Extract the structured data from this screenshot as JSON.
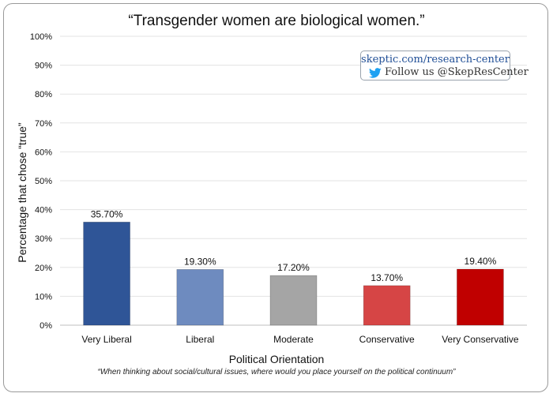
{
  "chart_data": {
    "type": "bar",
    "title": "“Transgender women are biological women.”",
    "xlabel": "Political Orientation",
    "ylabel": "Percentage that chose “true”",
    "subtitle_note": "“When thinking about social/cultural issues, where would you place yourself on the political continuum”",
    "categories": [
      "Very Liberal",
      "Liberal",
      "Moderate",
      "Conservative",
      "Very Conservative"
    ],
    "values": [
      35.7,
      19.3,
      17.2,
      13.7,
      19.4
    ],
    "value_labels": [
      "35.70%",
      "19.30%",
      "17.20%",
      "13.70%",
      "19.40%"
    ],
    "bar_colors": [
      "#2f5597",
      "#6e8bbf",
      "#a5a5a5",
      "#d64545",
      "#c00000"
    ],
    "ylim": [
      0,
      100
    ],
    "yticks": [
      0,
      10,
      20,
      30,
      40,
      50,
      60,
      70,
      80,
      90,
      100
    ],
    "ytick_labels": [
      "0%",
      "10%",
      "20%",
      "30%",
      "40%",
      "50%",
      "60%",
      "70%",
      "80%",
      "90%",
      "100%"
    ],
    "grid": true,
    "legend": "none"
  },
  "badge": {
    "site": "skeptic.com/research-center",
    "follow": "Follow us @SkepResCenter",
    "icon": "twitter-bird-icon",
    "site_color": "#1f4e96",
    "icon_color": "#1da1f2"
  }
}
